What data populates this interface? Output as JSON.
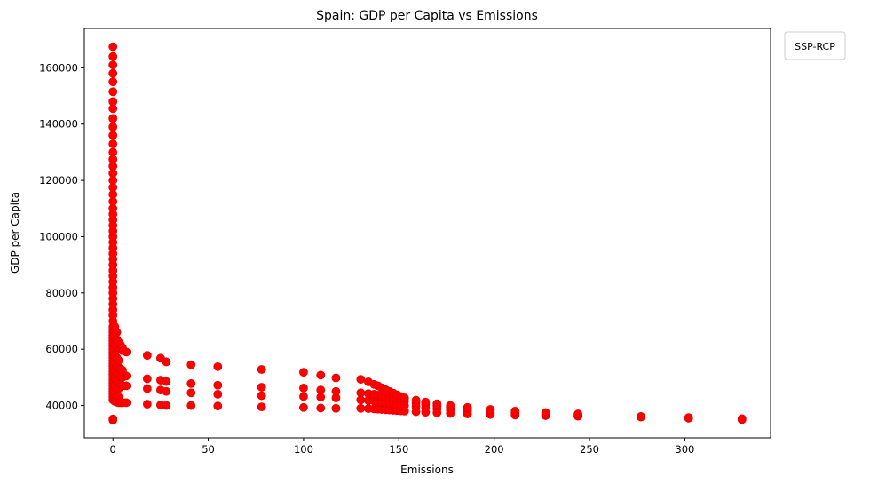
{
  "chart_data": {
    "type": "scatter",
    "title": "Spain: GDP per Capita vs Emissions",
    "xlabel": "Emissions",
    "ylabel": "GDP per Capita",
    "xlim": [
      -15,
      345
    ],
    "ylim": [
      28500,
      174000
    ],
    "xticks": [
      0,
      50,
      100,
      150,
      200,
      250,
      300
    ],
    "yticks": [
      40000,
      60000,
      80000,
      100000,
      120000,
      140000,
      160000
    ],
    "grid": false,
    "legend": {
      "title": "SSP-RCP",
      "placement": "outside top-right",
      "entries": []
    },
    "marker_color": "#ff0000",
    "marker_edge_color": "#e00000",
    "columns": [
      {
        "x": 0,
        "y": [
          34800,
          35200,
          42000,
          43000,
          44000,
          45000,
          46000,
          47000,
          48000,
          49000,
          50000,
          51000,
          52000,
          53000,
          54000,
          55000,
          56000,
          57000,
          58000,
          59000,
          60000,
          61000,
          62000,
          63000,
          64000,
          65000,
          66000,
          67000,
          68000,
          70000,
          72000,
          74000,
          76000,
          78000,
          80000,
          82000,
          84000,
          86000,
          88000,
          90000,
          92000,
          94000,
          96000,
          98000,
          100000,
          102000,
          104000,
          106000,
          108000,
          110000,
          112500,
          115000,
          117500,
          120000,
          122500,
          125000,
          127500,
          130000,
          133000,
          136000,
          139000,
          142000,
          145500,
          148000,
          151500,
          155000,
          158000,
          161000,
          164000,
          167500
        ]
      },
      {
        "x": 1,
        "y": [
          41500,
          44000,
          47000,
          49500,
          52000,
          55000,
          58000,
          62000,
          65000,
          68000
        ]
      },
      {
        "x": 2,
        "y": [
          41200,
          43500,
          46500,
          49000,
          51500,
          54000,
          57000,
          61000,
          63500,
          66000
        ]
      },
      {
        "x": 3,
        "y": [
          41000,
          43000,
          46000,
          48500,
          51000,
          53500,
          56000,
          60500,
          62500
        ]
      },
      {
        "x": 4,
        "y": [
          41000,
          47500,
          50500,
          53000,
          60000,
          61500
        ]
      },
      {
        "x": 5,
        "y": [
          41000,
          47000,
          50000,
          52500,
          59500,
          60500
        ]
      },
      {
        "x": 7,
        "y": [
          41000,
          47000,
          50500,
          59000
        ]
      },
      {
        "x": 18,
        "y": [
          40500,
          46000,
          49500,
          57800
        ]
      },
      {
        "x": 25,
        "y": [
          40200,
          45500,
          49000,
          56800
        ]
      },
      {
        "x": 28,
        "y": [
          40000,
          45000,
          48500,
          55500
        ]
      },
      {
        "x": 41,
        "y": [
          40000,
          44500,
          47800,
          54500
        ]
      },
      {
        "x": 55,
        "y": [
          39800,
          44000,
          47200,
          53800
        ]
      },
      {
        "x": 78,
        "y": [
          39500,
          43500,
          46500,
          52800
        ]
      },
      {
        "x": 100,
        "y": [
          39300,
          43200,
          46200,
          51800
        ]
      },
      {
        "x": 109,
        "y": [
          39100,
          43000,
          45500,
          50800
        ]
      },
      {
        "x": 117,
        "y": [
          39000,
          42700,
          45000,
          49800
        ]
      },
      {
        "x": 130,
        "y": [
          39000,
          42000,
          44500,
          49300
        ]
      },
      {
        "x": 134,
        "y": [
          38900,
          41800,
          44200,
          48400
        ]
      },
      {
        "x": 137,
        "y": [
          38800,
          41600,
          44000,
          47500
        ]
      },
      {
        "x": 139,
        "y": [
          38700,
          41400,
          43700,
          47000
        ]
      },
      {
        "x": 141,
        "y": [
          38600,
          41200,
          43400,
          46300
        ]
      },
      {
        "x": 143,
        "y": [
          38500,
          41000,
          43100,
          45600
        ]
      },
      {
        "x": 145,
        "y": [
          38400,
          40800,
          42800,
          45000
        ]
      },
      {
        "x": 147,
        "y": [
          38300,
          40600,
          42500,
          44400
        ]
      },
      {
        "x": 149,
        "y": [
          38200,
          40400,
          42200,
          43800
        ]
      },
      {
        "x": 151,
        "y": [
          38100,
          40200,
          41900,
          43200
        ]
      },
      {
        "x": 153,
        "y": [
          38000,
          40000,
          41600,
          42700
        ]
      },
      {
        "x": 159,
        "y": [
          37800,
          39600,
          41000,
          41900
        ]
      },
      {
        "x": 164,
        "y": [
          37600,
          39200,
          40500,
          41200
        ]
      },
      {
        "x": 170,
        "y": [
          37400,
          38800,
          39900,
          40600
        ]
      },
      {
        "x": 177,
        "y": [
          37200,
          38400,
          39400,
          40000
        ]
      },
      {
        "x": 186,
        "y": [
          37000,
          38000,
          38900,
          39300
        ]
      },
      {
        "x": 198,
        "y": [
          36800,
          37500,
          38300,
          38600
        ]
      },
      {
        "x": 211,
        "y": [
          36600,
          37100,
          37700,
          38000
        ]
      },
      {
        "x": 227,
        "y": [
          36400,
          36700,
          37100,
          37500
        ]
      },
      {
        "x": 244,
        "y": [
          36200,
          36400,
          36700,
          37000
        ]
      },
      {
        "x": 277,
        "y": [
          35900,
          36000,
          36100
        ]
      },
      {
        "x": 302,
        "y": [
          35500,
          35600,
          35700
        ]
      },
      {
        "x": 330,
        "y": [
          35000,
          35100,
          35300
        ]
      }
    ]
  }
}
